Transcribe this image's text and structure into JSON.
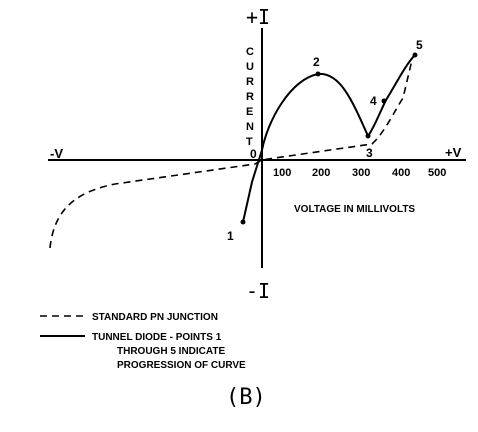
{
  "axes": {
    "plus_i": "+I",
    "minus_i": "-I",
    "minus_v": "-V",
    "plus_v": "+V",
    "origin": "0",
    "current_label": [
      "C",
      "U",
      "R",
      "R",
      "E",
      "N",
      "T"
    ],
    "x_ticks": [
      "100",
      "200",
      "300",
      "400",
      "500"
    ],
    "x_title": "VOLTAGE IN MILLIVOLTS"
  },
  "points": [
    "1",
    "2",
    "3",
    "4",
    "5"
  ],
  "legend": {
    "pn": "STANDARD PN JUNCTION",
    "tunnel_lines": [
      "TUNNEL DIODE - POINTS 1",
      "THROUGH 5 INDICATE",
      "PROGRESSION OF CURVE"
    ]
  },
  "caption": "(B)"
}
